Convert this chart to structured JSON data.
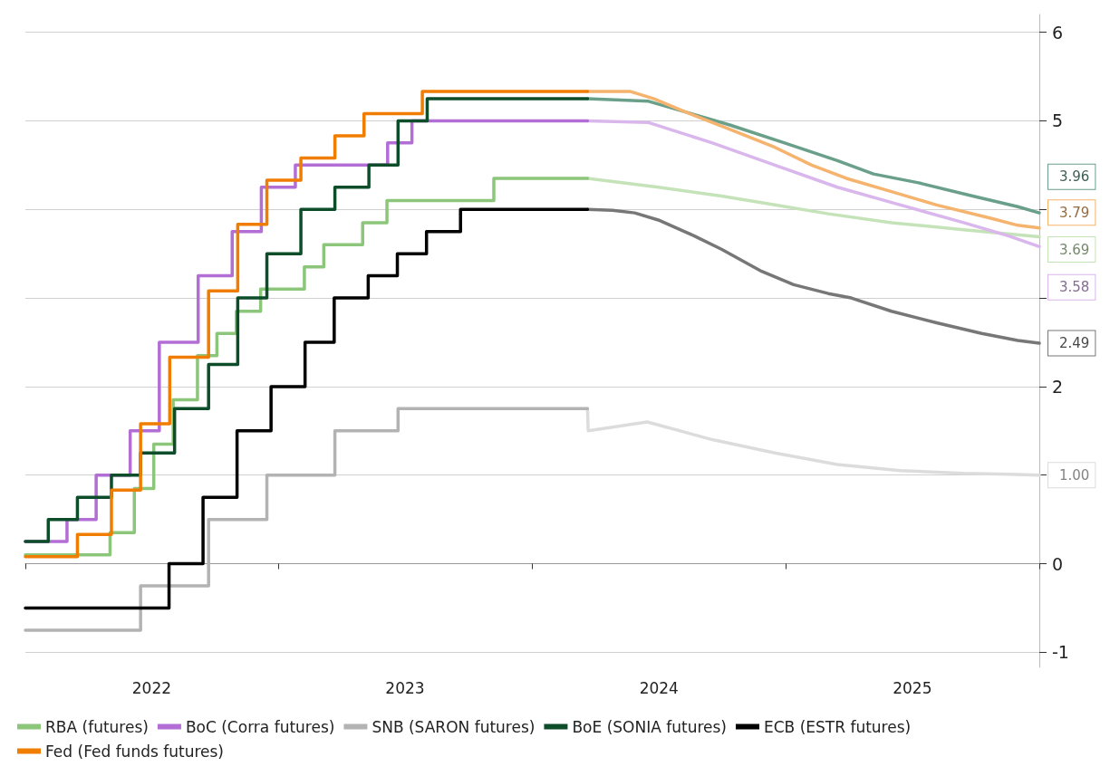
{
  "chart_data": {
    "type": "step",
    "xlim": [
      "2022-01-01",
      "2026-01-01"
    ],
    "xticks": [
      {
        "value": "2022-01-01",
        "label": null
      },
      {
        "value": "2022-07-02",
        "label": "2022"
      },
      {
        "value": "2023-01-01",
        "label": null
      },
      {
        "value": "2023-07-02",
        "label": "2023"
      },
      {
        "value": "2024-01-01",
        "label": null
      },
      {
        "value": "2024-07-02",
        "label": "2024"
      },
      {
        "value": "2025-01-01",
        "label": null
      },
      {
        "value": "2025-07-02",
        "label": "2025"
      },
      {
        "value": "2026-01-01",
        "label": null
      }
    ],
    "ylim": [
      -1.17,
      6.2
    ],
    "yticks": [
      -1,
      0,
      {
        "value": 1,
        "label": null
      },
      2,
      {
        "value": 3,
        "label": null
      },
      {
        "value": 4,
        "label": null
      },
      5,
      6
    ],
    "grid": "y",
    "legend": "bottom",
    "marker": "none",
    "line_style": "solid",
    "series": [
      {
        "name": "RBA (futures)",
        "color": "#8cc67a",
        "x": [
          "2022-01-01",
          "2022-05-03",
          "2022-06-07",
          "2022-07-05",
          "2022-08-02",
          "2022-09-06",
          "2022-10-04",
          "2022-11-01",
          "2022-12-06",
          "2023-02-07",
          "2023-03-07",
          "2023-05-02",
          "2023-06-06",
          "2023-11-07",
          "2024-03-21"
        ],
        "values": [
          0.1,
          0.35,
          0.85,
          1.35,
          1.85,
          2.35,
          2.6,
          2.85,
          3.1,
          3.35,
          3.6,
          3.85,
          4.1,
          4.35,
          4.35
        ]
      },
      {
        "name": "BoC (Corra futures)",
        "color": "#b36ed6",
        "x": [
          "2022-01-01",
          "2022-03-02",
          "2022-04-13",
          "2022-06-01",
          "2022-07-13",
          "2022-09-07",
          "2022-10-26",
          "2022-12-07",
          "2023-01-25",
          "2023-06-07",
          "2023-07-12",
          "2024-03-21"
        ],
        "values": [
          0.25,
          0.5,
          1.0,
          1.5,
          2.5,
          3.25,
          3.75,
          4.25,
          4.5,
          4.75,
          5.0,
          5.0
        ]
      },
      {
        "name": "SNB (SARON futures)",
        "color": "#b3b3b3",
        "x": [
          "2022-01-01",
          "2022-06-16",
          "2022-09-22",
          "2022-12-15",
          "2023-03-23",
          "2023-06-22",
          "2024-03-21"
        ],
        "values": [
          -0.75,
          -0.25,
          0.5,
          1.0,
          1.5,
          1.75,
          1.75
        ]
      },
      {
        "name": "BoE (SONIA futures)",
        "color": "#0d4d2a",
        "x": [
          "2022-01-01",
          "2022-02-03",
          "2022-03-17",
          "2022-05-05",
          "2022-06-16",
          "2022-08-04",
          "2022-09-22",
          "2022-11-03",
          "2022-12-15",
          "2023-02-02",
          "2023-03-23",
          "2023-05-11",
          "2023-06-22",
          "2023-08-03",
          "2024-03-21"
        ],
        "values": [
          0.25,
          0.5,
          0.75,
          1.0,
          1.25,
          1.75,
          2.25,
          3.0,
          3.5,
          4.0,
          4.25,
          4.5,
          5.0,
          5.25,
          5.25
        ]
      },
      {
        "name": "ECB (ESTR futures)",
        "color": "#000000",
        "x": [
          "2022-01-01",
          "2022-07-27",
          "2022-09-14",
          "2022-11-02",
          "2022-12-21",
          "2023-02-08",
          "2023-03-22",
          "2023-05-10",
          "2023-06-21",
          "2023-08-02",
          "2023-09-20",
          "2024-03-21"
        ],
        "values": [
          -0.5,
          0.0,
          0.75,
          1.5,
          2.0,
          2.5,
          3.0,
          3.25,
          3.5,
          3.75,
          4.0,
          4.0
        ]
      },
      {
        "name": "Fed (Fed funds futures)",
        "color": "#f07d00",
        "x": [
          "2022-01-01",
          "2022-03-17",
          "2022-05-05",
          "2022-06-16",
          "2022-07-28",
          "2022-09-22",
          "2022-11-03",
          "2022-12-15",
          "2023-02-02",
          "2023-03-23",
          "2023-05-04",
          "2023-07-27",
          "2024-03-21"
        ],
        "values": [
          0.08,
          0.33,
          0.83,
          1.58,
          2.33,
          3.08,
          3.83,
          4.33,
          4.58,
          4.83,
          5.08,
          5.33,
          5.33
        ]
      },
      {
        "color": "#c5e3b8",
        "type": "line",
        "x": [
          "2024-03-21",
          "2024-07-01",
          "2024-09-30",
          "2024-12-16",
          "2025-03-03",
          "2025-06-02",
          "2025-09-14",
          "2026-01-01"
        ],
        "values": [
          4.35,
          4.25,
          4.15,
          4.05,
          3.95,
          3.85,
          3.77,
          3.69
        ],
        "value_labels": [
          null,
          null,
          null,
          null,
          null,
          null,
          null,
          "3.69"
        ]
      },
      {
        "color": "#d9b7ec",
        "type": "line",
        "x": [
          "2024-03-21",
          "2024-06-17",
          "2024-09-17",
          "2024-12-16",
          "2025-03-16",
          "2025-06-15",
          "2025-09-14",
          "2025-11-18",
          "2026-01-01"
        ],
        "values": [
          5.0,
          4.98,
          4.75,
          4.5,
          4.25,
          4.05,
          3.85,
          3.7,
          3.58
        ],
        "value_labels": [
          null,
          null,
          null,
          null,
          null,
          null,
          null,
          null,
          "3.58"
        ]
      },
      {
        "color": "#dcdcdc",
        "type": "line",
        "x": [
          "2024-03-21",
          "2024-03-22",
          "2024-06-15",
          "2024-09-17",
          "2024-12-16",
          "2025-03-16",
          "2025-06-15",
          "2025-09-14",
          "2025-11-18",
          "2026-01-01"
        ],
        "values": [
          1.75,
          1.5,
          1.6,
          1.4,
          1.25,
          1.12,
          1.05,
          1.02,
          1.01,
          1.0
        ],
        "value_labels": [
          null,
          null,
          null,
          null,
          null,
          null,
          null,
          null,
          null,
          "1.00"
        ]
      },
      {
        "color": "#6a9f8a",
        "type": "line",
        "x": [
          "2024-03-21",
          "2024-06-17",
          "2024-08-09",
          "2024-10-13",
          "2024-12-30",
          "2025-03-16",
          "2025-05-07",
          "2025-07-11",
          "2025-09-27",
          "2025-12-01",
          "2026-01-01"
        ],
        "values": [
          5.25,
          5.22,
          5.1,
          4.95,
          4.75,
          4.55,
          4.4,
          4.3,
          4.15,
          4.03,
          3.96
        ],
        "value_labels": [
          null,
          null,
          null,
          null,
          null,
          null,
          null,
          null,
          null,
          null,
          "3.96"
        ]
      },
      {
        "color": "#777777",
        "type": "line",
        "x": [
          "2024-03-21",
          "2024-04-26",
          "2024-05-28",
          "2024-07-01",
          "2024-08-22",
          "2024-09-30",
          "2024-11-27",
          "2025-01-12",
          "2025-03-03",
          "2025-04-05",
          "2025-06-02",
          "2025-08-06",
          "2025-10-10",
          "2025-12-01",
          "2026-01-01"
        ],
        "values": [
          4.0,
          3.99,
          3.96,
          3.88,
          3.7,
          3.55,
          3.3,
          3.15,
          3.05,
          3.0,
          2.85,
          2.72,
          2.6,
          2.52,
          2.49
        ],
        "value_labels": [
          null,
          null,
          null,
          null,
          null,
          null,
          null,
          null,
          null,
          null,
          null,
          null,
          null,
          null,
          "2.49"
        ]
      },
      {
        "color": "#f5b36e",
        "type": "line",
        "x": [
          "2024-03-21",
          "2024-05-22",
          "2024-06-24",
          "2024-08-09",
          "2024-10-13",
          "2024-12-16",
          "2025-02-07",
          "2025-03-29",
          "2025-06-02",
          "2025-08-06",
          "2025-10-23",
          "2025-12-01",
          "2026-01-01"
        ],
        "values": [
          5.33,
          5.33,
          5.25,
          5.1,
          4.9,
          4.7,
          4.5,
          4.35,
          4.2,
          4.05,
          3.9,
          3.82,
          3.79
        ],
        "value_labels": [
          null,
          null,
          null,
          null,
          null,
          null,
          null,
          null,
          null,
          null,
          null,
          null,
          "3.79"
        ]
      }
    ]
  }
}
